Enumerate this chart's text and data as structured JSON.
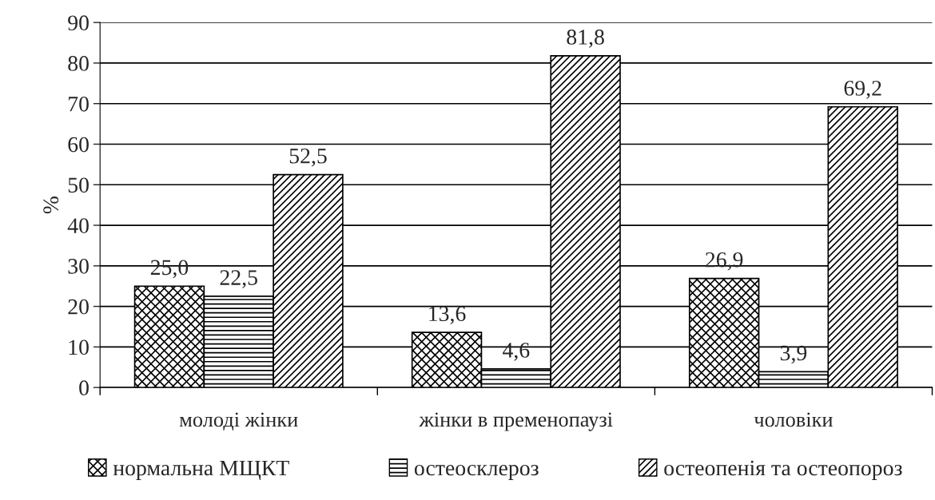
{
  "chart_data": {
    "type": "bar",
    "ylabel": "%",
    "categories": [
      "молоді жінки",
      "жінки в пременопаузі",
      "чоловіки"
    ],
    "series": [
      {
        "name": "нормальна МЩКТ",
        "color": "#000000",
        "values": [
          25.0,
          13.6,
          26.9
        ],
        "value_labels": [
          "25,0",
          "13,6",
          "26,9"
        ]
      },
      {
        "name": "остеосклероз",
        "color": "#000000",
        "values": [
          22.5,
          4.6,
          3.9
        ],
        "value_labels": [
          "22,5",
          "4,6",
          "3,9"
        ]
      },
      {
        "name": "остеопенія та остеопороз",
        "color": "#000000",
        "values": [
          52.5,
          81.8,
          69.2
        ],
        "value_labels": [
          "52,5",
          "81,8",
          "69,2"
        ]
      }
    ],
    "ylim": [
      0,
      90
    ],
    "yticks": [
      0,
      10,
      20,
      30,
      40,
      50,
      60,
      70,
      80,
      90
    ],
    "grid": "y",
    "legend": "bottom"
  }
}
